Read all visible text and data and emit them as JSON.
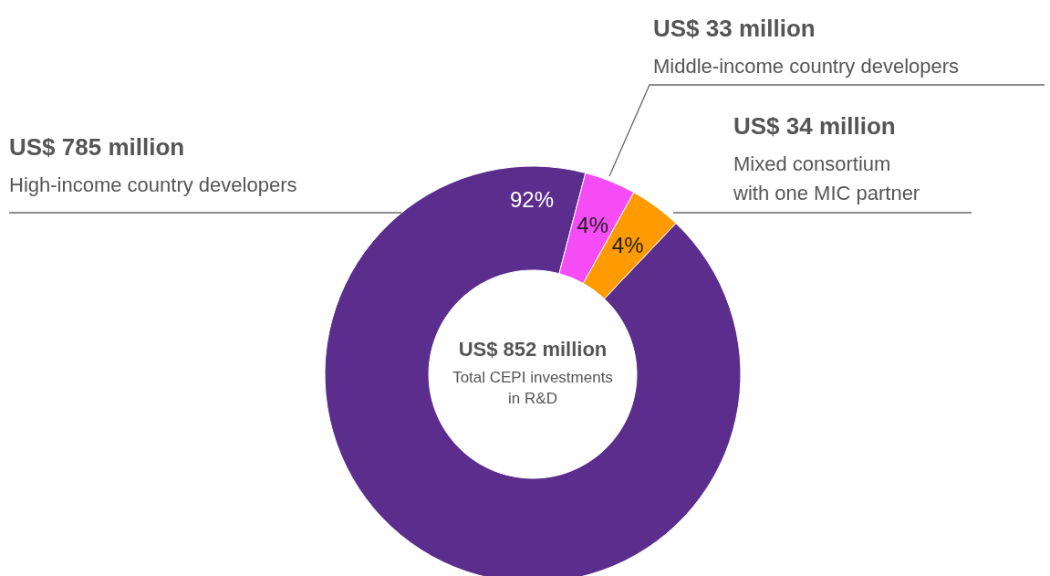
{
  "chart_data": {
    "type": "donut",
    "title": "US$ 852 million",
    "subtitle": "Total CEPI investments in R&D",
    "categories": [
      "High-income country developers",
      "Middle-income country developers",
      "Mixed consortium with one MIC partner"
    ],
    "values": [
      92,
      4,
      4
    ],
    "colors": [
      "#5b2d8c",
      "#f54cf5",
      "#ff9a00"
    ],
    "value_labels": [
      "92%",
      "4%",
      "4%"
    ],
    "annotations": [
      "US$ 785 million",
      "US$ 33 million",
      "US$ 34 million"
    ]
  }
}
